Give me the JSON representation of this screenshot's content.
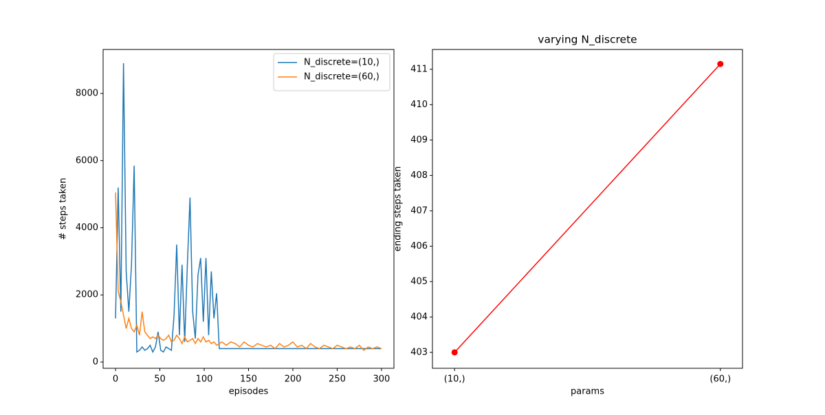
{
  "chart_data": [
    {
      "type": "line",
      "x_label": "episodes",
      "y_label": "# steps taken",
      "x": [
        0,
        3,
        6,
        9,
        12,
        15,
        18,
        21,
        24,
        27,
        30,
        33,
        36,
        39,
        42,
        45,
        48,
        51,
        54,
        57,
        60,
        63,
        66,
        69,
        72,
        75,
        78,
        81,
        84,
        87,
        90,
        93,
        96,
        99,
        102,
        105,
        108,
        111,
        114,
        117,
        120,
        125,
        130,
        135,
        140,
        145,
        150,
        155,
        160,
        165,
        170,
        175,
        180,
        185,
        190,
        195,
        200,
        205,
        210,
        215,
        220,
        225,
        230,
        235,
        240,
        245,
        250,
        255,
        260,
        265,
        270,
        275,
        280,
        285,
        290,
        295,
        300
      ],
      "series": [
        {
          "name": "N_discrete=(10,)",
          "color": "#1f77b4",
          "values": [
            1300,
            5200,
            1500,
            8900,
            2700,
            1500,
            2900,
            5850,
            300,
            350,
            450,
            350,
            400,
            500,
            300,
            450,
            900,
            350,
            300,
            450,
            400,
            350,
            1400,
            3500,
            800,
            2900,
            600,
            2900,
            4900,
            1500,
            700,
            2600,
            3100,
            1200,
            3100,
            800,
            2700,
            1300,
            2050,
            400,
            400,
            400,
            400,
            400,
            400,
            400,
            400,
            400,
            400,
            400,
            400,
            400,
            400,
            400,
            400,
            400,
            400,
            400,
            400,
            400,
            400,
            400,
            400,
            400,
            400,
            400,
            400,
            400,
            400,
            400,
            400,
            400,
            400,
            400,
            400,
            400,
            400
          ]
        },
        {
          "name": "N_discrete=(60,)",
          "color": "#ff7f0e",
          "values": [
            5050,
            2100,
            1800,
            1400,
            1000,
            1300,
            1000,
            900,
            1100,
            800,
            1500,
            900,
            800,
            700,
            750,
            700,
            800,
            700,
            650,
            700,
            800,
            600,
            650,
            800,
            700,
            550,
            750,
            600,
            650,
            700,
            550,
            700,
            600,
            750,
            600,
            650,
            550,
            600,
            500,
            550,
            600,
            500,
            600,
            550,
            450,
            600,
            500,
            450,
            550,
            500,
            450,
            500,
            400,
            550,
            450,
            500,
            600,
            450,
            500,
            400,
            550,
            450,
            400,
            500,
            450,
            400,
            500,
            450,
            400,
            450,
            400,
            500,
            350,
            450,
            400,
            450,
            400
          ]
        }
      ],
      "xlim": [
        -14,
        314
      ],
      "xticks": [
        0,
        50,
        100,
        150,
        200,
        250,
        300
      ],
      "ylim": [
        -185,
        9310
      ],
      "yticks": [
        0,
        2000,
        4000,
        6000,
        8000
      ],
      "legend": "upper right"
    },
    {
      "type": "line",
      "title": "varying N_discrete",
      "x_label": "params",
      "y_label": "ending steps taken",
      "categories": [
        "(10,)",
        "(60,)"
      ],
      "series": [
        {
          "name": null,
          "color": "#ff0000",
          "values": [
            403.0,
            411.15
          ]
        }
      ],
      "marker": "o",
      "ylim": [
        402.55,
        411.56
      ],
      "yticks": [
        403,
        404,
        405,
        406,
        407,
        408,
        409,
        410,
        411
      ]
    }
  ]
}
